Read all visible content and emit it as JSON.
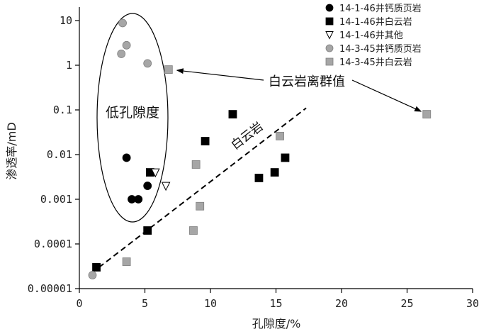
{
  "chart_data": {
    "type": "scatter",
    "xlabel": "孔隙度/%",
    "ylabel": "渗透率/mD",
    "x_ticks": [
      "0",
      "5",
      "10",
      "15",
      "20",
      "25",
      "30"
    ],
    "y_ticks": [
      "0.00001",
      "0.0001",
      "0.001",
      "0.01",
      "0.1",
      "1",
      "10"
    ],
    "xlim": [
      0,
      30
    ],
    "ylim": [
      1e-05,
      20
    ],
    "yscale": "log",
    "grid": false,
    "legend_position": "top-right",
    "series": [
      {
        "name": "14-1-46井钙质页岩",
        "marker": "circle",
        "color": "#000000",
        "points": [
          {
            "x": 3.6,
            "y": 0.0085
          },
          {
            "x": 4.0,
            "y": 0.001
          },
          {
            "x": 4.5,
            "y": 0.001
          },
          {
            "x": 5.2,
            "y": 0.002
          }
        ]
      },
      {
        "name": "14-1-46井白云岩",
        "marker": "square",
        "color": "#000000",
        "points": [
          {
            "x": 1.3,
            "y": 3e-05
          },
          {
            "x": 5.2,
            "y": 0.0002
          },
          {
            "x": 5.4,
            "y": 0.004
          },
          {
            "x": 9.6,
            "y": 0.02
          },
          {
            "x": 11.7,
            "y": 0.08
          },
          {
            "x": 13.7,
            "y": 0.003
          },
          {
            "x": 14.9,
            "y": 0.004
          },
          {
            "x": 15.7,
            "y": 0.0085
          }
        ]
      },
      {
        "name": "14-1-46井其他",
        "marker": "triangle-down",
        "color": "#ffffff",
        "points": [
          {
            "x": 5.8,
            "y": 0.004
          },
          {
            "x": 6.6,
            "y": 0.002
          }
        ]
      },
      {
        "name": "14-3-45井钙质页岩",
        "marker": "circle",
        "color": "#a6a6a6",
        "points": [
          {
            "x": 1.0,
            "y": 2e-05
          },
          {
            "x": 3.3,
            "y": 8.8
          },
          {
            "x": 3.6,
            "y": 2.8
          },
          {
            "x": 3.2,
            "y": 1.8
          },
          {
            "x": 5.2,
            "y": 1.1
          }
        ]
      },
      {
        "name": "14-3-45井白云岩",
        "marker": "square",
        "color": "#a6a6a6",
        "points": [
          {
            "x": 3.6,
            "y": 4e-05
          },
          {
            "x": 6.8,
            "y": 0.8
          },
          {
            "x": 8.7,
            "y": 0.0002
          },
          {
            "x": 8.9,
            "y": 0.006
          },
          {
            "x": 9.2,
            "y": 0.0007
          },
          {
            "x": 15.3,
            "y": 0.026
          },
          {
            "x": 26.5,
            "y": 0.08
          }
        ]
      }
    ],
    "trendline": {
      "label": "白云岩",
      "style": "dashed",
      "from": {
        "x": 1.5,
        "y": 3e-05
      },
      "to": {
        "x": 17.3,
        "y": 0.11
      }
    },
    "annotations": [
      {
        "text": "低孔隙度",
        "shape": "ellipse"
      },
      {
        "text": "白云岩离群值",
        "arrows_to": [
          {
            "x": 6.8,
            "y": 0.8
          },
          {
            "x": 26.5,
            "y": 0.08
          }
        ]
      }
    ]
  }
}
